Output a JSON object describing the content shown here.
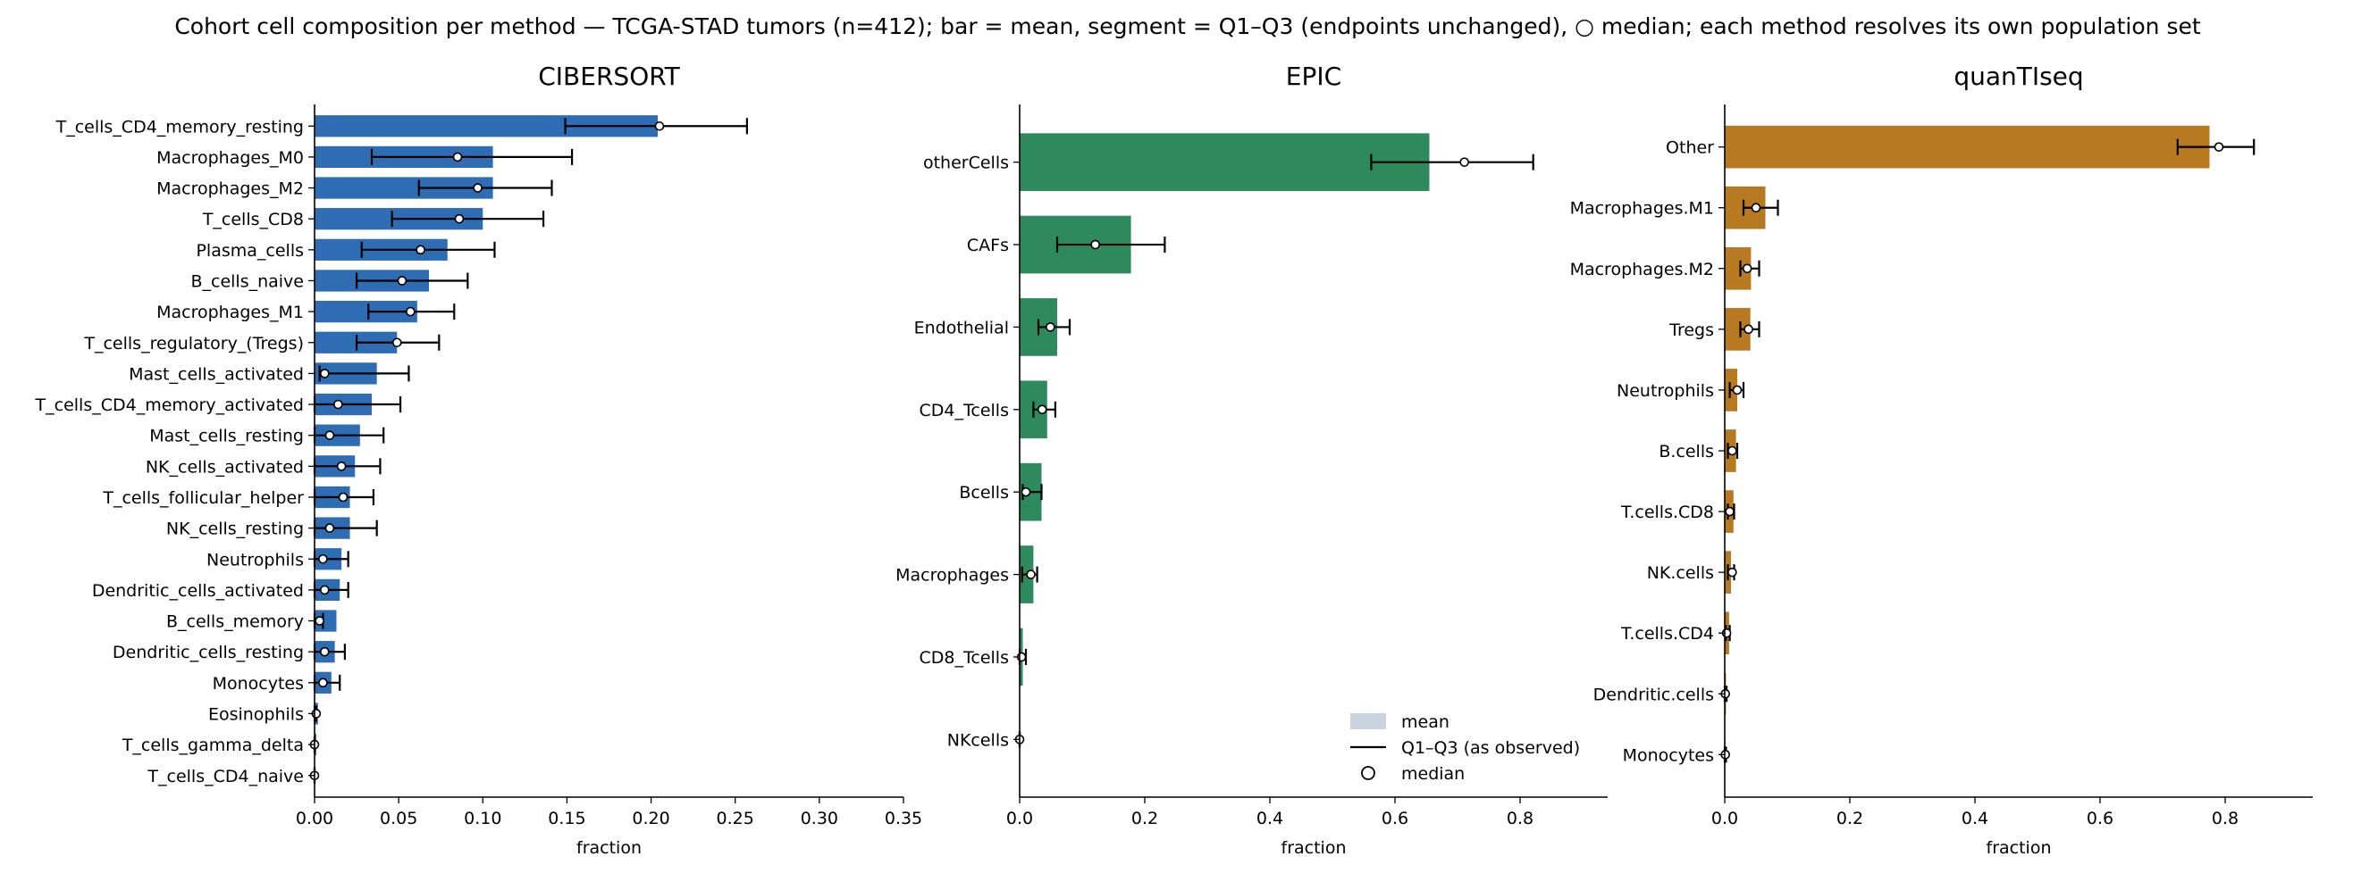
{
  "figure_title": "Cohort cell composition per method — TCGA-STAD tumors (n=412); bar = mean, segment = Q1–Q3 (endpoints unchanged), ○ median; each method resolves its own population set",
  "legend": {
    "placement": "lower-right of EPIC panel",
    "items": [
      "mean",
      "Q1–Q3 (as observed)",
      "median"
    ]
  },
  "chart_data": [
    {
      "type": "bar",
      "orientation": "horizontal",
      "title": "CIBERSORT",
      "xlabel": "fraction",
      "ylabel": "",
      "xlim": [
        0,
        0.35
      ],
      "xticks": [
        0.0,
        0.05,
        0.1,
        0.15,
        0.2,
        0.25,
        0.3,
        0.35
      ],
      "xtick_labels": [
        "0.00",
        "0.05",
        "0.10",
        "0.15",
        "0.20",
        "0.25",
        "0.30",
        "0.35"
      ],
      "color": "#2e6db4",
      "grid": false,
      "categories": [
        "T_cells_CD4_memory_resting",
        "Macrophages_M0",
        "Macrophages_M2",
        "T_cells_CD8",
        "Plasma_cells",
        "B_cells_naive",
        "Macrophages_M1",
        "T_cells_regulatory_(Tregs)",
        "Mast_cells_activated",
        "T_cells_CD4_memory_activated",
        "Mast_cells_resting",
        "NK_cells_activated",
        "T_cells_follicular_helper",
        "NK_cells_resting",
        "Neutrophils",
        "Dendritic_cells_activated",
        "B_cells_memory",
        "Dendritic_cells_resting",
        "Monocytes",
        "Eosinophils",
        "T_cells_gamma_delta",
        "T_cells_CD4_naive"
      ],
      "mean": [
        0.204,
        0.106,
        0.106,
        0.1,
        0.079,
        0.068,
        0.061,
        0.049,
        0.037,
        0.034,
        0.027,
        0.024,
        0.021,
        0.021,
        0.016,
        0.015,
        0.013,
        0.012,
        0.01,
        0.002,
        0.001,
        0.0
      ],
      "q1": [
        0.149,
        0.034,
        0.062,
        0.046,
        0.028,
        0.025,
        0.032,
        0.025,
        0.003,
        0.0,
        0.0,
        0.0,
        0.0,
        0.0,
        0.0,
        0.0,
        0.0,
        0.0,
        0.0,
        0.0,
        0.0,
        0.0
      ],
      "q3": [
        0.257,
        0.153,
        0.141,
        0.136,
        0.107,
        0.091,
        0.083,
        0.074,
        0.056,
        0.051,
        0.041,
        0.039,
        0.035,
        0.037,
        0.02,
        0.02,
        0.005,
        0.018,
        0.015,
        0.001,
        0.0,
        0.0
      ],
      "median": [
        0.205,
        0.085,
        0.097,
        0.086,
        0.063,
        0.052,
        0.057,
        0.049,
        0.006,
        0.014,
        0.009,
        0.016,
        0.017,
        0.009,
        0.005,
        0.006,
        0.003,
        0.006,
        0.005,
        0.001,
        0.0,
        0.0
      ]
    },
    {
      "type": "bar",
      "orientation": "horizontal",
      "title": "EPIC",
      "xlabel": "fraction",
      "ylabel": "",
      "xlim": [
        0,
        0.94
      ],
      "xticks": [
        0.0,
        0.2,
        0.4,
        0.6,
        0.8
      ],
      "xtick_labels": [
        "0.0",
        "0.2",
        "0.4",
        "0.6",
        "0.8"
      ],
      "color": "#2e8a5c",
      "grid": false,
      "categories": [
        "otherCells",
        "CAFs",
        "Endothelial",
        "CD4_Tcells",
        "Bcells",
        "Macrophages",
        "CD8_Tcells",
        "NKcells"
      ],
      "mean": [
        0.655,
        0.178,
        0.06,
        0.044,
        0.035,
        0.022,
        0.005,
        0.0
      ],
      "q1": [
        0.562,
        0.06,
        0.03,
        0.022,
        0.005,
        0.004,
        0.0,
        0.0
      ],
      "q3": [
        0.821,
        0.232,
        0.08,
        0.057,
        0.035,
        0.028,
        0.01,
        0.0
      ],
      "median": [
        0.711,
        0.121,
        0.049,
        0.036,
        0.01,
        0.018,
        0.003,
        0.0
      ]
    },
    {
      "type": "bar",
      "orientation": "horizontal",
      "title": "quanTIseq",
      "xlabel": "fraction",
      "ylabel": "",
      "xlim": [
        0,
        0.94
      ],
      "xticks": [
        0.0,
        0.2,
        0.4,
        0.6,
        0.8
      ],
      "xtick_labels": [
        "0.0",
        "0.2",
        "0.4",
        "0.6",
        "0.8"
      ],
      "color": "#b87a20",
      "grid": false,
      "categories": [
        "Other",
        "Macrophages.M1",
        "Macrophages.M2",
        "Tregs",
        "Neutrophils",
        "B.cells",
        "T.cells.CD8",
        "NK.cells",
        "T.cells.CD4",
        "Dendritic.cells",
        "Monocytes"
      ],
      "mean": [
        0.775,
        0.065,
        0.042,
        0.041,
        0.02,
        0.018,
        0.014,
        0.01,
        0.007,
        0.002,
        0.001
      ],
      "q1": [
        0.724,
        0.03,
        0.025,
        0.025,
        0.008,
        0.005,
        0.005,
        0.005,
        0.002,
        0.0,
        0.0
      ],
      "q3": [
        0.846,
        0.085,
        0.055,
        0.055,
        0.03,
        0.02,
        0.015,
        0.015,
        0.008,
        0.003,
        0.002
      ],
      "median": [
        0.79,
        0.05,
        0.036,
        0.038,
        0.02,
        0.012,
        0.008,
        0.012,
        0.003,
        0.001,
        0.001
      ]
    }
  ]
}
